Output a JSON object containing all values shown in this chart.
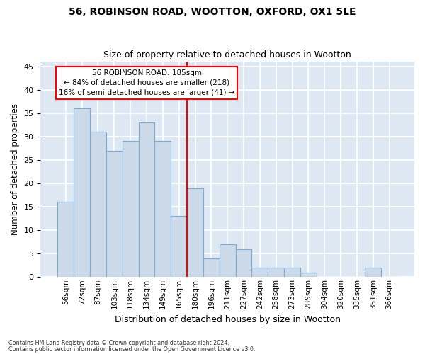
{
  "title": "56, ROBINSON ROAD, WOOTTON, OXFORD, OX1 5LE",
  "subtitle": "Size of property relative to detached houses in Wootton",
  "xlabel": "Distribution of detached houses by size in Wootton",
  "ylabel": "Number of detached properties",
  "bar_color": "#ccd9e8",
  "bar_edge_color": "#7aacd4",
  "plot_bg_color": "#dde8f2",
  "fig_bg_color": "#ffffff",
  "grid_color": "#ffffff",
  "categories": [
    "56sqm",
    "72sqm",
    "87sqm",
    "103sqm",
    "118sqm",
    "134sqm",
    "149sqm",
    "165sqm",
    "180sqm",
    "196sqm",
    "211sqm",
    "227sqm",
    "242sqm",
    "258sqm",
    "273sqm",
    "289sqm",
    "304sqm",
    "320sqm",
    "335sqm",
    "351sqm",
    "366sqm"
  ],
  "values": [
    16,
    36,
    31,
    27,
    29,
    33,
    29,
    13,
    19,
    4,
    7,
    6,
    2,
    2,
    2,
    1,
    0,
    0,
    0,
    2,
    0
  ],
  "highlight_bar_index": 8,
  "highlight_label": "56 ROBINSON ROAD: 185sqm",
  "annotation_line1": "← 84% of detached houses are smaller (218)",
  "annotation_line2": "16% of semi-detached houses are larger (41) →",
  "ylim": [
    0,
    46
  ],
  "yticks": [
    0,
    5,
    10,
    15,
    20,
    25,
    30,
    35,
    40,
    45
  ],
  "footnote1": "Contains HM Land Registry data © Crown copyright and database right 2024.",
  "footnote2": "Contains public sector information licensed under the Open Government Licence v3.0."
}
